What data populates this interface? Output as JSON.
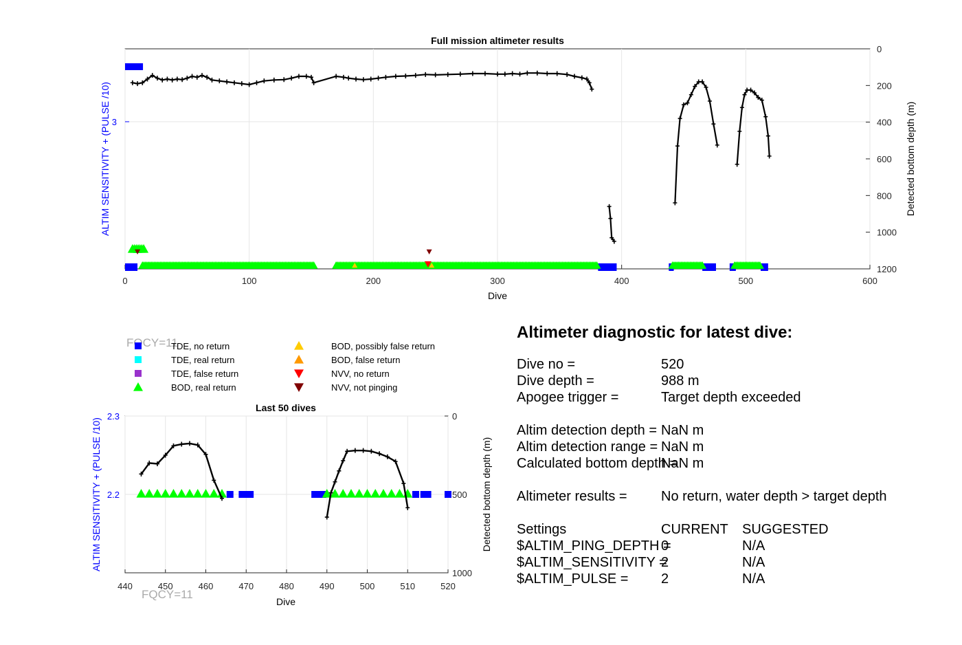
{
  "colors": {
    "tde_no_return": "#0000ff",
    "tde_real_return": "#00ffff",
    "tde_false_return": "#9932cc",
    "bod_real_return": "#00ff00",
    "bod_possibly_false": "#ffcc00",
    "bod_false": "#ff9900",
    "nvv_no_return": "#ff0000",
    "nvv_not_pinging": "#800000",
    "depth_line": "#000000",
    "left_axis": "#0000ff"
  },
  "chart_data": [
    {
      "type": "line",
      "title": "Full mission altimeter results",
      "xlabel": "Dive",
      "ylabel_left": "ALTIM SENSITIVITY + (PULSE /10)",
      "ylabel_right": "Detected bottom depth (m)",
      "xlim": [
        0,
        600
      ],
      "xticks": [
        0,
        100,
        200,
        300,
        400,
        500,
        600
      ],
      "right_ylim": [
        0,
        1200
      ],
      "right_ticks": [
        0,
        200,
        400,
        600,
        800,
        1000,
        1200
      ],
      "left_tick_labels": [
        "3"
      ],
      "grid": true,
      "depth_segments": [
        [
          [
            6,
            185
          ],
          [
            10,
            190
          ],
          [
            14,
            185
          ],
          [
            18,
            165
          ],
          [
            22,
            145
          ],
          [
            26,
            160
          ],
          [
            30,
            170
          ],
          [
            34,
            165
          ],
          [
            38,
            170
          ],
          [
            42,
            165
          ],
          [
            46,
            168
          ],
          [
            50,
            160
          ],
          [
            54,
            150
          ],
          [
            58,
            155
          ],
          [
            62,
            145
          ],
          [
            66,
            155
          ],
          [
            70,
            170
          ],
          [
            76,
            175
          ],
          [
            82,
            180
          ],
          [
            88,
            185
          ],
          [
            94,
            190
          ],
          [
            100,
            195
          ],
          [
            106,
            185
          ],
          [
            112,
            175
          ],
          [
            120,
            170
          ],
          [
            128,
            168
          ],
          [
            134,
            160
          ],
          [
            140,
            150
          ],
          [
            146,
            150
          ],
          [
            150,
            155
          ],
          [
            152,
            185
          ],
          [
            170,
            150
          ],
          [
            176,
            155
          ],
          [
            180,
            160
          ],
          [
            186,
            165
          ],
          [
            192,
            168
          ],
          [
            198,
            165
          ],
          [
            204,
            160
          ],
          [
            210,
            155
          ],
          [
            218,
            150
          ],
          [
            226,
            148
          ],
          [
            234,
            145
          ],
          [
            242,
            140
          ],
          [
            250,
            142
          ],
          [
            260,
            140
          ],
          [
            270,
            138
          ],
          [
            280,
            135
          ],
          [
            290,
            135
          ],
          [
            300,
            138
          ],
          [
            306,
            138
          ],
          [
            312,
            135
          ],
          [
            318,
            138
          ],
          [
            324,
            132
          ],
          [
            332,
            132
          ],
          [
            340,
            135
          ],
          [
            348,
            135
          ],
          [
            356,
            140
          ],
          [
            362,
            150
          ],
          [
            368,
            158
          ],
          [
            372,
            165
          ],
          [
            374,
            185
          ],
          [
            376,
            220
          ]
        ],
        [
          [
            390,
            860
          ],
          [
            391,
            925
          ],
          [
            392,
            1030
          ],
          [
            394,
            1050
          ]
        ],
        [
          [
            443,
            840
          ],
          [
            445,
            530
          ],
          [
            447,
            380
          ],
          [
            450,
            305
          ],
          [
            453,
            295
          ],
          [
            456,
            250
          ],
          [
            459,
            205
          ],
          [
            462,
            180
          ],
          [
            465,
            180
          ],
          [
            468,
            210
          ],
          [
            471,
            285
          ],
          [
            474,
            410
          ],
          [
            477,
            525
          ]
        ],
        [
          [
            493,
            630
          ],
          [
            495,
            450
          ],
          [
            497,
            320
          ],
          [
            499,
            250
          ],
          [
            501,
            225
          ],
          [
            504,
            225
          ],
          [
            507,
            240
          ],
          [
            510,
            265
          ],
          [
            513,
            280
          ],
          [
            516,
            370
          ],
          [
            518,
            475
          ],
          [
            519,
            585
          ]
        ]
      ],
      "tde_no_return_segments": [
        [
          0,
          10
        ],
        [
          381,
          396
        ],
        [
          438,
          442
        ],
        [
          465,
          476
        ],
        [
          487,
          492
        ],
        [
          512,
          518
        ]
      ],
      "tde_top_marker": [
        0,
        10
      ],
      "tde_real_return": [
        [
          5,
          6
        ]
      ],
      "bod_real_return_segments": [
        [
          14,
          152
        ],
        [
          170,
          380
        ],
        [
          441,
          466
        ],
        [
          491,
          512
        ]
      ],
      "bod_small": [
        [
          6,
          16
        ]
      ],
      "bod_possibly_false": [
        [
          185
        ],
        [
          247
        ]
      ],
      "nvv_no_return": [
        [
          244
        ]
      ],
      "nvv_not_pinging": [
        [
          10
        ],
        [
          245
        ]
      ]
    },
    {
      "type": "line",
      "title": "Last 50 dives",
      "xlabel": "Dive",
      "ylabel_left": "ALTIM SENSITIVITY + (PULSE /10)",
      "ylabel_right": "Detected bottom depth (m)",
      "xlim": [
        440,
        520
      ],
      "xticks": [
        440,
        450,
        460,
        470,
        480,
        490,
        500,
        510,
        520
      ],
      "ylim": [
        2.1,
        2.3
      ],
      "yticks": [
        2.2,
        2.3
      ],
      "right_ylim": [
        0,
        1000
      ],
      "right_ticks": [
        0,
        500,
        1000
      ],
      "grid": true,
      "depth_segments": [
        [
          [
            444,
            370
          ],
          [
            446,
            300
          ],
          [
            448,
            305
          ],
          [
            450,
            250
          ],
          [
            452,
            190
          ],
          [
            454,
            180
          ],
          [
            456,
            175
          ],
          [
            458,
            185
          ],
          [
            460,
            245
          ],
          [
            462,
            410
          ],
          [
            464,
            525
          ]
        ],
        [
          [
            490,
            645
          ],
          [
            491,
            490
          ],
          [
            492,
            420
          ],
          [
            493,
            350
          ],
          [
            494,
            285
          ],
          [
            495,
            225
          ],
          [
            497,
            220
          ],
          [
            499,
            220
          ],
          [
            501,
            225
          ],
          [
            503,
            240
          ],
          [
            505,
            260
          ],
          [
            507,
            290
          ],
          [
            509,
            430
          ],
          [
            510,
            585
          ]
        ]
      ],
      "bod_real_return": [
        444,
        446,
        448,
        450,
        452,
        454,
        456,
        458,
        460,
        462,
        464,
        490,
        492,
        494,
        496,
        498,
        500,
        502,
        504,
        506,
        508,
        510
      ],
      "tde_no_return": [
        466,
        469,
        470,
        471,
        487,
        488,
        489,
        512,
        514,
        515,
        520
      ]
    }
  ],
  "legend": {
    "items": [
      {
        "label": "TDE, no return",
        "color": "#0000ff",
        "marker": "square"
      },
      {
        "label": "TDE, real return",
        "color": "#00ffff",
        "marker": "square"
      },
      {
        "label": "TDE, false return",
        "color": "#9932cc",
        "marker": "square"
      },
      {
        "label": "BOD, real return",
        "color": "#00ff00",
        "marker": "triangle-up"
      },
      {
        "label": "BOD, possibly false return",
        "color": "#ffcc00",
        "marker": "triangle-up"
      },
      {
        "label": "BOD, false return",
        "color": "#ff9900",
        "marker": "triangle-up"
      },
      {
        "label": "NVV, no return",
        "color": "#ff0000",
        "marker": "triangle-down"
      },
      {
        "label": "NVV, not pinging",
        "color": "#800000",
        "marker": "triangle-down"
      }
    ]
  },
  "fqcy_labels": [
    "FQCY=11",
    "FQCY=11"
  ],
  "diagnostic": {
    "title": "Altimeter diagnostic for latest dive:",
    "dive_no_label": "Dive no =",
    "dive_no_value": "520",
    "dive_depth_label": "Dive depth =",
    "dive_depth_value": "988 m",
    "apogee_label": "Apogee trigger =",
    "apogee_value": "Target depth exceeded",
    "det_depth_label": "Altim detection depth =",
    "det_depth_value": "NaN m",
    "det_range_label": "Altim detection range =",
    "det_range_value": "NaN m",
    "calc_bottom_label": "Calculated bottom depth =",
    "calc_bottom_value": "NaN m",
    "results_label": "Altimeter results =",
    "results_value": "No return, water depth > target depth",
    "settings_label": "Settings",
    "current_label": "CURRENT",
    "suggested_label": "SUGGESTED",
    "ping_depth_label": "$ALTIM_PING_DEPTH =",
    "ping_depth_current": "0",
    "ping_depth_suggested": "N/A",
    "sensitivity_label": "$ALTIM_SENSITIVITY =",
    "sensitivity_current": "2",
    "sensitivity_suggested": "N/A",
    "pulse_label": "$ALTIM_PULSE =",
    "pulse_current": "2",
    "pulse_suggested": "N/A"
  }
}
